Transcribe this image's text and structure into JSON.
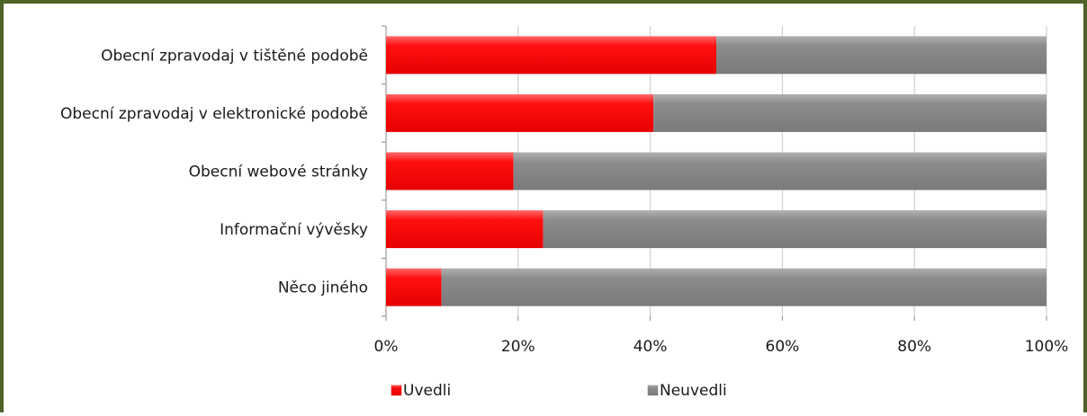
{
  "chart_data": {
    "type": "bar",
    "orientation": "horizontal",
    "stacked": "percent",
    "categories": [
      "Obecní zpravodaj v tištěné podobě",
      "Obecní zpravodaj v elektronické podobě",
      "Obecní webové stránky",
      "Informační vývěsky",
      "Něco jiného"
    ],
    "series": [
      {
        "name": "Uvedli",
        "color": "#ff0000",
        "values": [
          50,
          40.5,
          19.3,
          23.8,
          8.4
        ]
      },
      {
        "name": "Neuvedli",
        "color": "#808080",
        "values": [
          50,
          59.5,
          80.7,
          76.2,
          91.6
        ]
      }
    ],
    "xlim": [
      0,
      100
    ],
    "x_ticks": [
      "0%",
      "20%",
      "40%",
      "60%",
      "80%",
      "100%"
    ],
    "grid": true,
    "legend_position": "bottom"
  }
}
